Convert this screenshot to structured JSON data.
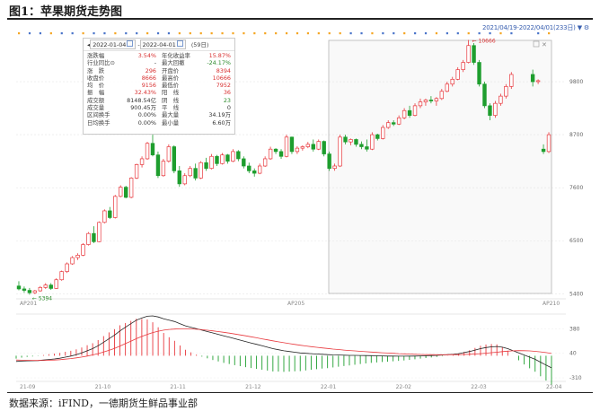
{
  "figure": {
    "title": "图1：苹果期货走势图",
    "source": "数据来源：iFIND，一德期货生鲜品事业部",
    "date_range": "2021/04/19-2022/04/01(233日)",
    "peak_label": "10666",
    "low_label": "5394"
  },
  "info_box": {
    "start_date": "2022-01-04",
    "end_date": "2022-04-01",
    "days": "(59日)",
    "left": [
      {
        "label": "涨跌幅",
        "value": "3.54%",
        "color": "red"
      },
      {
        "label": "行业同比⊙",
        "value": "-",
        "color": "dark"
      },
      {
        "label": "涨　跌",
        "value": "296",
        "color": "red"
      },
      {
        "label": "收盘价",
        "value": "8666",
        "color": "red"
      },
      {
        "label": "均　价",
        "value": "9156",
        "color": "red"
      },
      {
        "label": "振　幅",
        "value": "32.43%",
        "color": "red"
      },
      {
        "label": "成交额",
        "value": "8148.54亿",
        "color": "dark"
      },
      {
        "label": "成交量",
        "value": "900.45万",
        "color": "dark"
      },
      {
        "label": "区间换手",
        "value": "0.00%",
        "color": "dark"
      },
      {
        "label": "日均换手",
        "value": "0.00%",
        "color": "dark"
      }
    ],
    "right": [
      {
        "label": "年化收益率",
        "value": "15.87%",
        "color": "red"
      },
      {
        "label": "最大回撤",
        "value": "-24.17%",
        "color": "green"
      },
      {
        "label": "开盘价",
        "value": "8394",
        "color": "red"
      },
      {
        "label": "最高价",
        "value": "10666",
        "color": "red"
      },
      {
        "label": "最低价",
        "value": "7952",
        "color": "red"
      },
      {
        "label": "阳　线",
        "value": "36",
        "color": "red"
      },
      {
        "label": "阴　线",
        "value": "23",
        "color": "green"
      },
      {
        "label": "平　线",
        "value": "0",
        "color": "dark"
      },
      {
        "label": "最大量",
        "value": "34.19万",
        "color": "dark"
      },
      {
        "label": "最小量",
        "value": "6.60万",
        "color": "dark"
      }
    ]
  },
  "chart_data": [
    {
      "type": "candlestick",
      "contract_labels": [
        "AP201",
        "AP205",
        "AP210"
      ],
      "y_ticks": [
        5400,
        6500,
        7600,
        8700,
        9800
      ],
      "ylim": [
        5350,
        10750
      ],
      "colors": {
        "up": "#e8383d",
        "down": "#1e9e2e"
      },
      "ohlc": [
        [
          5560,
          5660,
          5470,
          5500
        ],
        [
          5500,
          5550,
          5420,
          5470
        ],
        [
          5470,
          5520,
          5380,
          5420
        ],
        [
          5420,
          5480,
          5394,
          5460
        ],
        [
          5460,
          5560,
          5440,
          5530
        ],
        [
          5530,
          5620,
          5500,
          5580
        ],
        [
          5580,
          5620,
          5480,
          5510
        ],
        [
          5510,
          5720,
          5500,
          5690
        ],
        [
          5690,
          5880,
          5670,
          5860
        ],
        [
          5860,
          6050,
          5830,
          6020
        ],
        [
          6020,
          6180,
          6000,
          6150
        ],
        [
          6150,
          6240,
          6100,
          6200
        ],
        [
          6200,
          6450,
          6180,
          6420
        ],
        [
          6420,
          6680,
          6400,
          6650
        ],
        [
          6650,
          6800,
          6450,
          6480
        ],
        [
          6480,
          6900,
          6470,
          6880
        ],
        [
          6880,
          7150,
          6860,
          7120
        ],
        [
          7120,
          7200,
          6950,
          6980
        ],
        [
          6980,
          7450,
          6960,
          7420
        ],
        [
          7420,
          7650,
          7400,
          7610
        ],
        [
          7610,
          7640,
          7380,
          7400
        ],
        [
          7400,
          7820,
          7380,
          7800
        ],
        [
          7800,
          8100,
          7780,
          8080
        ],
        [
          8080,
          8250,
          8020,
          8200
        ],
        [
          8200,
          8550,
          8180,
          8520
        ],
        [
          8520,
          8700,
          8250,
          8280
        ],
        [
          8280,
          8350,
          7800,
          7850
        ],
        [
          7850,
          8200,
          7830,
          8150
        ],
        [
          8150,
          8500,
          8120,
          8450
        ],
        [
          8450,
          8480,
          7900,
          7950
        ],
        [
          7950,
          8050,
          7620,
          7680
        ],
        [
          7680,
          7900,
          7650,
          7850
        ],
        [
          7850,
          8050,
          7820,
          8000
        ],
        [
          8000,
          8100,
          7750,
          7800
        ],
        [
          7800,
          8150,
          7780,
          8120
        ],
        [
          8120,
          8220,
          7950,
          8000
        ],
        [
          8000,
          8300,
          7980,
          8250
        ],
        [
          8250,
          8280,
          8050,
          8100
        ],
        [
          8100,
          8320,
          8080,
          8280
        ],
        [
          8280,
          8300,
          8100,
          8150
        ],
        [
          8150,
          8400,
          8130,
          8350
        ],
        [
          8350,
          8380,
          8150,
          8200
        ],
        [
          8200,
          8250,
          8000,
          8050
        ],
        [
          8050,
          8120,
          7900,
          7950
        ],
        [
          7950,
          8000,
          7830,
          7900
        ],
        [
          7900,
          8100,
          7880,
          8050
        ],
        [
          8050,
          8250,
          8030,
          8200
        ],
        [
          8200,
          8450,
          8180,
          8400
        ],
        [
          8400,
          8420,
          8300,
          8350
        ],
        [
          8350,
          8400,
          8200,
          8250
        ],
        [
          8250,
          8700,
          8230,
          8650
        ],
        [
          8650,
          8660,
          8300,
          8350
        ],
        [
          8350,
          8460,
          8300,
          8420
        ],
        [
          8420,
          8480,
          8370,
          8450
        ],
        [
          8450,
          8550,
          8420,
          8500
        ],
        [
          8500,
          8600,
          8350,
          8400
        ],
        [
          8400,
          8600,
          8380,
          8560
        ],
        [
          8560,
          8580,
          8250,
          8300
        ],
        [
          8300,
          8350,
          7950,
          8000
        ],
        [
          8000,
          8100,
          7952,
          8050
        ],
        [
          8050,
          8700,
          8030,
          8650
        ],
        [
          8650,
          8700,
          8500,
          8550
        ],
        [
          8550,
          8620,
          8480,
          8600
        ],
        [
          8600,
          8620,
          8450,
          8500
        ],
        [
          8500,
          8560,
          8400,
          8450
        ],
        [
          8450,
          8600,
          8350,
          8400
        ],
        [
          8400,
          8750,
          8380,
          8700
        ],
        [
          8700,
          8720,
          8580,
          8620
        ],
        [
          8620,
          8900,
          8600,
          8850
        ],
        [
          8850,
          9000,
          8820,
          8950
        ],
        [
          8950,
          9000,
          8880,
          8920
        ],
        [
          8920,
          9100,
          8900,
          9050
        ],
        [
          9050,
          9250,
          9020,
          9200
        ],
        [
          9200,
          9300,
          9050,
          9100
        ],
        [
          9100,
          9350,
          9080,
          9300
        ],
        [
          9300,
          9450,
          9250,
          9380
        ],
        [
          9380,
          9450,
          9300,
          9420
        ],
        [
          9420,
          9500,
          9350,
          9400
        ],
        [
          9400,
          9480,
          9300,
          9450
        ],
        [
          9450,
          9650,
          9420,
          9600
        ],
        [
          9600,
          9800,
          9580,
          9750
        ],
        [
          9750,
          9900,
          9700,
          9850
        ],
        [
          9850,
          10100,
          9830,
          10050
        ],
        [
          10050,
          10250,
          10000,
          10200
        ],
        [
          10200,
          10666,
          10180,
          10550
        ],
        [
          10550,
          10600,
          10150,
          10200
        ],
        [
          10200,
          10250,
          9700,
          9750
        ],
        [
          9750,
          9800,
          9250,
          9300
        ],
        [
          9300,
          9350,
          9000,
          9100
        ],
        [
          9100,
          9400,
          9050,
          9350
        ],
        [
          9350,
          9550,
          9300,
          9500
        ],
        [
          9500,
          9750,
          9450,
          9700
        ],
        [
          9700,
          10000,
          9650,
          9950
        ],
        [
          9950,
          10050,
          9700,
          9800
        ],
        [
          9800,
          9850,
          9750,
          9820
        ],
        [
          8400,
          8500,
          8300,
          8350
        ],
        [
          8350,
          8750,
          8320,
          8700
        ]
      ],
      "gaps_after": [
        92
      ]
    },
    {
      "type": "macd",
      "x_labels": [
        "21-09",
        "21-10",
        "21-11",
        "21-12",
        "22-01",
        "22-02",
        "22-03",
        "22-04"
      ],
      "y_ticks": [
        380,
        40,
        -310
      ],
      "ylim": [
        -360,
        560
      ],
      "dif": [
        -80,
        -75,
        -72,
        -70,
        -68,
        -60,
        -52,
        -45,
        -35,
        -20,
        -5,
        15,
        40,
        70,
        100,
        140,
        190,
        240,
        290,
        350,
        400,
        450,
        500,
        530,
        555,
        560,
        545,
        520,
        500,
        480,
        450,
        420,
        400,
        380,
        360,
        340,
        320,
        300,
        280,
        260,
        240,
        220,
        200,
        180,
        160,
        140,
        120,
        100,
        85,
        70,
        60,
        50,
        40,
        35,
        30,
        25,
        20,
        15,
        12,
        10,
        8,
        6,
        5,
        4,
        3,
        2,
        0,
        -2,
        -4,
        -5,
        -6,
        -6,
        -5,
        -4,
        -2,
        0,
        3,
        6,
        10,
        15,
        20,
        30,
        45,
        60,
        80,
        100,
        115,
        125,
        130,
        120,
        100,
        70,
        40,
        10,
        -20,
        -50,
        -90,
        -130,
        -170
      ],
      "dea": [
        -60,
        -62,
        -64,
        -65,
        -66,
        -65,
        -63,
        -60,
        -55,
        -48,
        -40,
        -30,
        -18,
        -4,
        12,
        30,
        52,
        76,
        104,
        136,
        170,
        205,
        240,
        272,
        300,
        325,
        345,
        360,
        370,
        375,
        378,
        378,
        376,
        372,
        366,
        358,
        350,
        340,
        330,
        318,
        306,
        293,
        280,
        266,
        252,
        238,
        224,
        210,
        196,
        183,
        171,
        159,
        148,
        138,
        128,
        119,
        110,
        102,
        94,
        87,
        80,
        74,
        68,
        62,
        57,
        52,
        47,
        42,
        38,
        34,
        30,
        27,
        24,
        21,
        18,
        16,
        15,
        14,
        14,
        14,
        15,
        16,
        18,
        21,
        25,
        30,
        36,
        43,
        50,
        58,
        65,
        70,
        72,
        71,
        68,
        62,
        54,
        44,
        32
      ]
    }
  ]
}
